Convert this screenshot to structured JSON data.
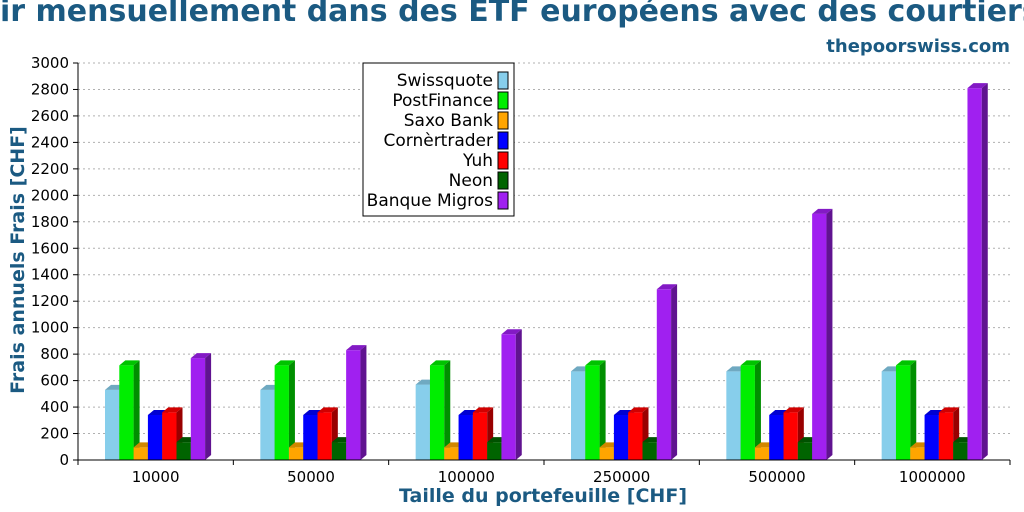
{
  "header": {
    "title": "ir mensuellement dans des ETF européens avec des courtiers s",
    "site": "thepoorswiss.com"
  },
  "colors": {
    "title": "#1b5a82",
    "grid": "#b0b0b0"
  },
  "chart_data": {
    "type": "bar",
    "xlabel": "Taille du portefeuille [CHF]",
    "ylabel": "Frais annuels Frais [CHF]",
    "categories": [
      "10000",
      "50000",
      "100000",
      "250000",
      "500000",
      "1000000"
    ],
    "ylim": [
      0,
      3000
    ],
    "yticks": [
      0,
      200,
      400,
      600,
      800,
      1000,
      1200,
      1400,
      1600,
      1800,
      2000,
      2200,
      2400,
      2600,
      2800,
      3000
    ],
    "grid": true,
    "legend_position": "top-center",
    "series": [
      {
        "name": "Swissquote",
        "color": "#87ceeb",
        "values": [
          530,
          530,
          570,
          670,
          670,
          670
        ]
      },
      {
        "name": "PostFinance",
        "color": "#00ee00",
        "values": [
          715,
          715,
          715,
          715,
          715,
          715
        ]
      },
      {
        "name": "Saxo Bank",
        "color": "#ffa500",
        "values": [
          95,
          95,
          95,
          95,
          95,
          95
        ]
      },
      {
        "name": "Cornèrtrader",
        "color": "#0000ff",
        "values": [
          340,
          340,
          340,
          340,
          340,
          340
        ]
      },
      {
        "name": "Yuh",
        "color": "#ff0000",
        "values": [
          360,
          360,
          360,
          360,
          360,
          360
        ]
      },
      {
        "name": "Neon",
        "color": "#006400",
        "values": [
          135,
          135,
          135,
          135,
          135,
          135
        ]
      },
      {
        "name": "Banque Migros",
        "color": "#a020f0",
        "values": [
          770,
          830,
          950,
          1290,
          1860,
          2810
        ]
      }
    ]
  }
}
